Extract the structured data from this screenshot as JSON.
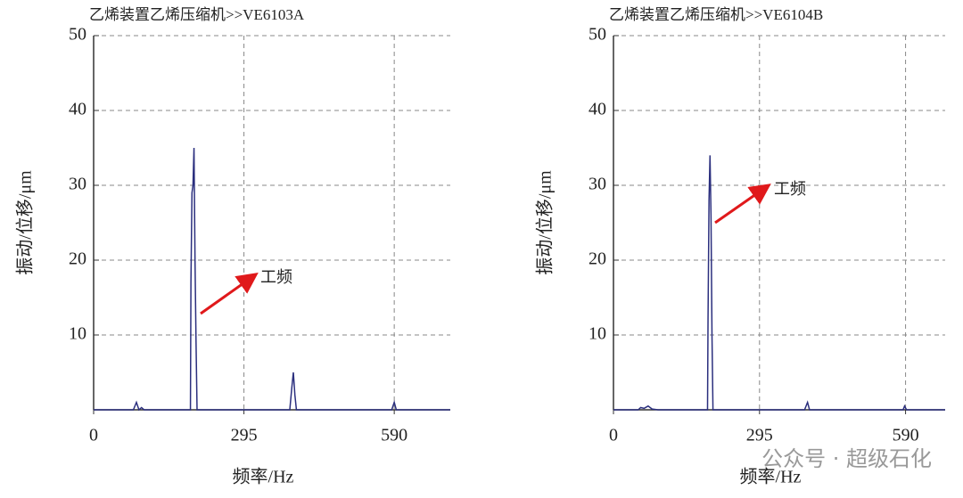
{
  "chart_data": [
    {
      "type": "line",
      "title": "乙烯装置乙烯压缩机>>VE6103A",
      "x_label": "频率/Hz",
      "y_label": "振动/位移/μm",
      "annotation": "工频",
      "color": "#2b2f7e",
      "x": [
        0,
        78,
        84,
        89,
        94,
        99,
        190,
        191,
        193,
        195,
        197,
        199,
        201,
        203,
        385,
        389,
        392,
        395,
        398,
        585,
        590,
        594,
        700
      ],
      "values": [
        0,
        0,
        1,
        0,
        0.3,
        0,
        0,
        17,
        29,
        30,
        35,
        20,
        9,
        0,
        0,
        3,
        5,
        2,
        0,
        0,
        1,
        0,
        0
      ],
      "xlim": [
        0,
        700
      ],
      "ylim": [
        0,
        50
      ],
      "xticks": [
        0,
        295,
        590
      ],
      "yticks": [
        10,
        20,
        30,
        40,
        50
      ],
      "grid": true
    },
    {
      "type": "line",
      "title": "乙烯装置乙烯压缩机>>VE6104B",
      "x_label": "频率/Hz",
      "y_label": "振动/位移/μm",
      "annotation": "工频",
      "color": "#2b2f7e",
      "x": [
        0,
        50,
        55,
        62,
        70,
        78,
        90,
        190,
        191,
        193,
        195,
        197,
        199,
        201,
        386,
        392,
        396,
        585,
        588,
        592,
        670
      ],
      "values": [
        0,
        0,
        0.3,
        0.2,
        0.5,
        0.1,
        0,
        0,
        12,
        28,
        34,
        26,
        10,
        0,
        0,
        1,
        0,
        0,
        0.5,
        0,
        0
      ],
      "xlim": [
        0,
        670
      ],
      "ylim": [
        0,
        50
      ],
      "xticks": [
        0,
        295,
        590
      ],
      "yticks": [
        10,
        20,
        30,
        40,
        50
      ],
      "grid": true
    }
  ],
  "watermark": "公众号 · 超级石化"
}
